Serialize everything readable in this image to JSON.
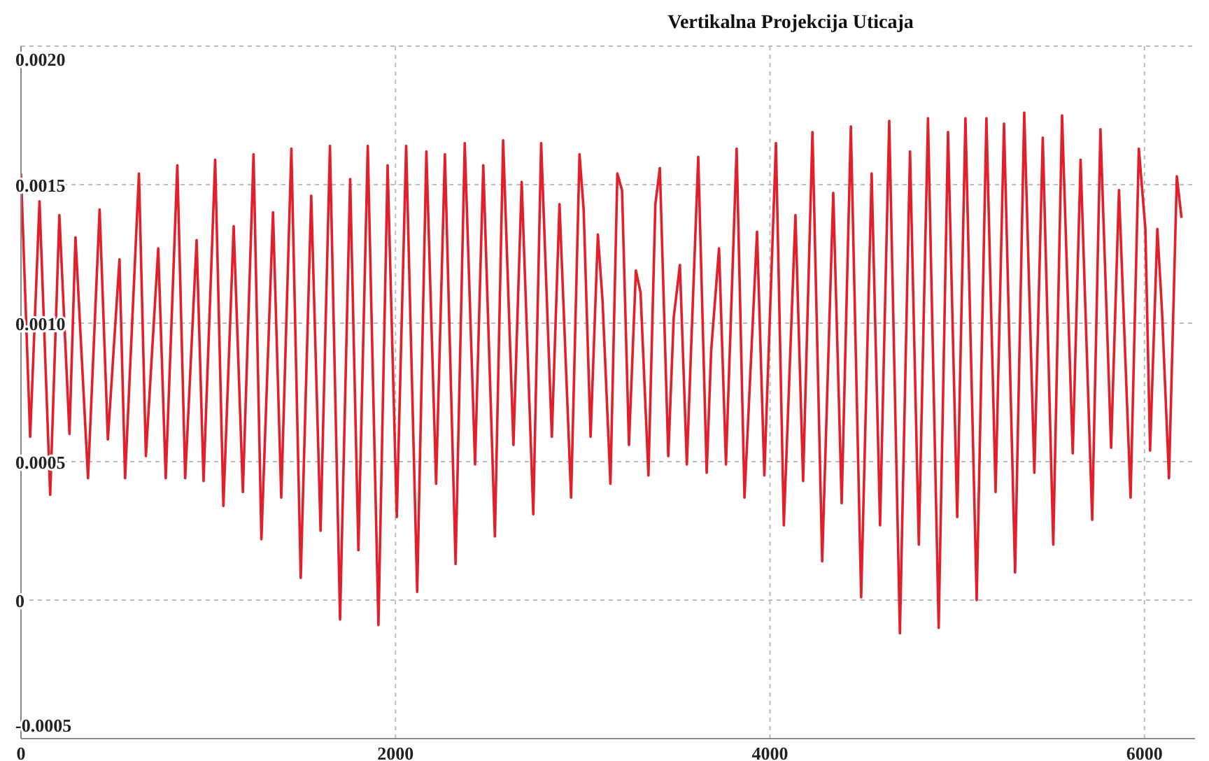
{
  "chart_data": {
    "type": "line",
    "title": "Vertikalna Projekcija Uticaja",
    "x": [
      0,
      49,
      99,
      156,
      205,
      259,
      291,
      358,
      420,
      464,
      526,
      556,
      630,
      667,
      733,
      773,
      835,
      877,
      938,
      975,
      1037,
      1081,
      1136,
      1185,
      1242,
      1284,
      1346,
      1390,
      1444,
      1494,
      1550,
      1600,
      1650,
      1704,
      1758,
      1802,
      1852,
      1909,
      1958,
      2007,
      2057,
      2116,
      2165,
      2217,
      2264,
      2321,
      2370,
      2425,
      2469,
      2531,
      2575,
      2630,
      2674,
      2736,
      2778,
      2835,
      2876,
      2938,
      2983,
      3005,
      3042,
      3081,
      3106,
      3148,
      3185,
      3210,
      3247,
      3284,
      3309,
      3351,
      3388,
      3412,
      3457,
      3486,
      3519,
      3556,
      3617,
      3662,
      3686,
      3728,
      3765,
      3822,
      3864,
      3931,
      3970,
      4032,
      4074,
      4136,
      4177,
      4227,
      4279,
      4338,
      4383,
      4432,
      4487,
      4543,
      4588,
      4637,
      4694,
      4748,
      4795,
      4844,
      4901,
      4951,
      5000,
      5044,
      5104,
      5156,
      5205,
      5250,
      5309,
      5358,
      5412,
      5457,
      5513,
      5560,
      5617,
      5659,
      5721,
      5765,
      5822,
      5864,
      5926,
      5970,
      6005,
      6030,
      6069,
      6094,
      6131,
      6173,
      6198
    ],
    "series": [
      {
        "color": "#e0202a",
        "values": [
          0.00154,
          0.00059,
          0.00144,
          0.00038,
          0.00139,
          0.0006,
          0.00131,
          0.00044,
          0.00141,
          0.00058,
          0.00123,
          0.00044,
          0.00154,
          0.00052,
          0.00127,
          0.00044,
          0.00157,
          0.00044,
          0.0013,
          0.00043,
          0.00159,
          0.00034,
          0.00135,
          0.00039,
          0.00161,
          0.00022,
          0.0014,
          0.00037,
          0.00163,
          8e-05,
          0.00146,
          0.00025,
          0.00164,
          -7e-05,
          0.00152,
          0.00018,
          0.00164,
          -9e-05,
          0.00157,
          0.0003,
          0.00164,
          3e-05,
          0.00162,
          0.00042,
          0.00161,
          0.00013,
          0.00165,
          0.00049,
          0.00157,
          0.00023,
          0.00166,
          0.00056,
          0.00151,
          0.00031,
          0.00165,
          0.00059,
          0.00143,
          0.00037,
          0.00161,
          0.00141,
          0.00059,
          0.00132,
          0.00108,
          0.00042,
          0.00154,
          0.00148,
          0.00056,
          0.00119,
          0.00111,
          0.00045,
          0.00143,
          0.00156,
          0.00052,
          0.00102,
          0.00121,
          0.00049,
          0.0016,
          0.00046,
          0.0009,
          0.00127,
          0.00049,
          0.00163,
          0.00037,
          0.00133,
          0.00045,
          0.00165,
          0.00027,
          0.00139,
          0.00043,
          0.00169,
          0.00014,
          0.00147,
          0.00035,
          0.00171,
          1e-05,
          0.00154,
          0.00027,
          0.00173,
          -0.00012,
          0.00162,
          0.0002,
          0.00174,
          -0.0001,
          0.00169,
          0.0003,
          0.00174,
          0.0,
          0.00174,
          0.00039,
          0.00172,
          0.0001,
          0.00176,
          0.00046,
          0.00167,
          0.0002,
          0.00175,
          0.00053,
          0.00159,
          0.00029,
          0.0017,
          0.00055,
          0.00148,
          0.00037,
          0.00163,
          0.00134,
          0.00054,
          0.00134,
          0.00104,
          0.00044,
          0.00153,
          0.00138
        ]
      }
    ],
    "xlim": [
      0,
      6270
    ],
    "xticks": [
      0,
      2000,
      4000,
      6000
    ],
    "ylim": [
      -0.0005,
      0.002
    ],
    "yticks": [
      {
        "value": -0.0005,
        "label": "-0.0005"
      },
      {
        "value": 0,
        "label": "0"
      },
      {
        "value": 0.0005,
        "label": "0.0005"
      },
      {
        "value": 0.001,
        "label": "0.0010"
      },
      {
        "value": 0.0015,
        "label": "0.0015"
      },
      {
        "value": 0.002,
        "label": "0.0020"
      }
    ],
    "grid": true,
    "marker": "none",
    "line_style": "solid"
  }
}
